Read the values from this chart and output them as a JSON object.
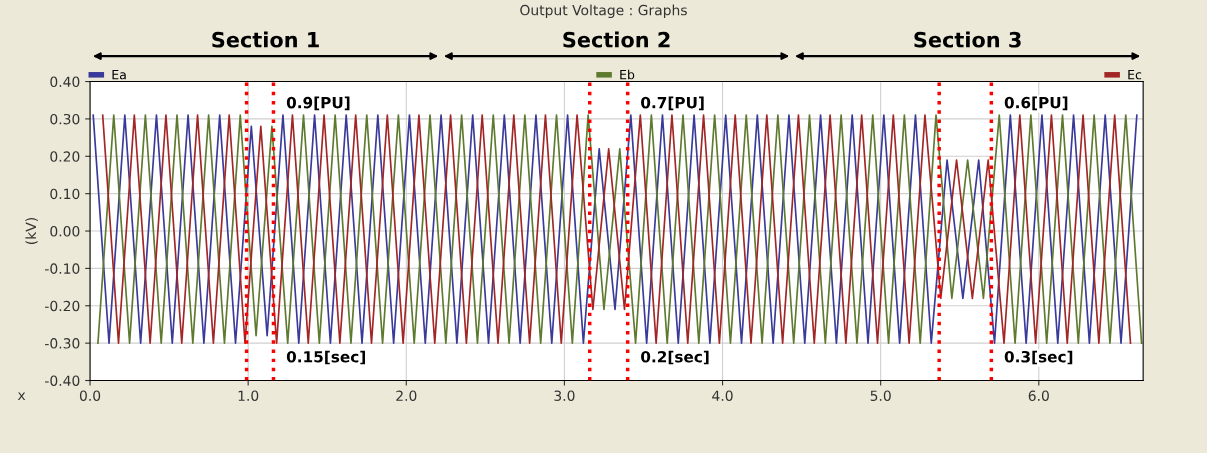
{
  "chart_data": {
    "type": "line",
    "title": "Output Voltage : Graphs",
    "ylabel": "(kV)",
    "xlabel": "x",
    "xlim": [
      0,
      6.66
    ],
    "ylim": [
      -0.4,
      0.4
    ],
    "xticks": [
      {
        "value": 0,
        "label": "0.0"
      },
      {
        "value": 1,
        "label": "1.0"
      },
      {
        "value": 2,
        "label": "2.0"
      },
      {
        "value": 3,
        "label": "3.0"
      },
      {
        "value": 4,
        "label": "4.0"
      },
      {
        "value": 5,
        "label": "5.0"
      },
      {
        "value": 6,
        "label": "6.0"
      }
    ],
    "yticks": [
      {
        "value": -0.4,
        "label": "-0.40"
      },
      {
        "value": -0.3,
        "label": "-0.30"
      },
      {
        "value": -0.2,
        "label": "-0.20"
      },
      {
        "value": -0.1,
        "label": "-0.10"
      },
      {
        "value": 0,
        "label": "0.00"
      },
      {
        "value": 0.1,
        "label": "0.10"
      },
      {
        "value": 0.2,
        "label": "0.20"
      },
      {
        "value": 0.3,
        "label": "0.30"
      },
      {
        "value": 0.4,
        "label": "0.40"
      }
    ],
    "grid": true,
    "legend": "top",
    "marker": "none",
    "line_style": "solid",
    "series": [
      {
        "name": "Ea",
        "color": "#3a3a9a",
        "x": [
          0.02,
          0.12,
          0.22,
          0.32,
          0.42,
          0.52,
          0.62,
          0.72,
          0.82,
          0.92,
          1.02,
          1.12,
          1.22,
          1.32,
          1.42,
          1.52,
          1.62,
          1.72,
          1.82,
          1.92,
          2.02,
          2.12,
          2.22,
          2.32,
          2.42,
          2.52,
          2.62,
          2.72,
          2.82,
          2.92,
          3.02,
          3.12,
          3.22,
          3.32,
          3.42,
          3.52,
          3.62,
          3.72,
          3.82,
          3.92,
          4.02,
          4.12,
          4.22,
          4.32,
          4.42,
          4.52,
          4.62,
          4.72,
          4.82,
          4.92,
          5.02,
          5.12,
          5.22,
          5.32,
          5.42,
          5.52,
          5.62,
          5.72,
          5.82,
          5.92,
          6.02,
          6.12,
          6.22,
          6.32,
          6.42,
          6.52,
          6.62
        ],
        "values": [
          0.31,
          -0.3,
          0.31,
          -0.3,
          0.31,
          -0.3,
          0.31,
          -0.3,
          0.31,
          -0.3,
          0.28,
          -0.28,
          0.31,
          -0.3,
          0.31,
          -0.3,
          0.31,
          -0.3,
          0.31,
          -0.3,
          0.31,
          -0.3,
          0.31,
          -0.3,
          0.31,
          -0.3,
          0.31,
          -0.3,
          0.31,
          -0.3,
          0.31,
          -0.3,
          0.22,
          -0.21,
          0.31,
          -0.3,
          0.31,
          -0.3,
          0.31,
          -0.3,
          0.31,
          -0.3,
          0.31,
          -0.3,
          0.31,
          -0.3,
          0.31,
          -0.3,
          0.31,
          -0.3,
          0.31,
          -0.3,
          0.31,
          -0.3,
          0.19,
          -0.18,
          0.19,
          -0.3,
          0.31,
          -0.3,
          0.31,
          -0.3,
          0.31,
          -0.3,
          0.31,
          -0.3,
          0.31
        ]
      },
      {
        "name": "Eb",
        "color": "#5e7a2e",
        "x": [
          0.05,
          0.15,
          0.25,
          0.35,
          0.45,
          0.55,
          0.65,
          0.75,
          0.85,
          0.95,
          1.05,
          1.15,
          1.25,
          1.35,
          1.45,
          1.55,
          1.65,
          1.75,
          1.85,
          1.95,
          2.05,
          2.15,
          2.25,
          2.35,
          2.45,
          2.55,
          2.65,
          2.75,
          2.85,
          2.95,
          3.05,
          3.15,
          3.25,
          3.35,
          3.45,
          3.55,
          3.65,
          3.75,
          3.85,
          3.95,
          4.05,
          4.15,
          4.25,
          4.35,
          4.45,
          4.55,
          4.65,
          4.75,
          4.85,
          4.95,
          5.05,
          5.15,
          5.25,
          5.35,
          5.45,
          5.55,
          5.65,
          5.75,
          5.85,
          5.95,
          6.05,
          6.15,
          6.25,
          6.35,
          6.45,
          6.55,
          6.65
        ],
        "values": [
          -0.3,
          0.31,
          -0.3,
          0.31,
          -0.3,
          0.31,
          -0.3,
          0.31,
          -0.3,
          0.31,
          -0.28,
          0.28,
          -0.3,
          0.31,
          -0.3,
          0.31,
          -0.3,
          0.31,
          -0.3,
          0.31,
          -0.3,
          0.31,
          -0.3,
          0.31,
          -0.3,
          0.31,
          -0.3,
          0.31,
          -0.3,
          0.31,
          -0.3,
          0.31,
          -0.21,
          0.22,
          -0.3,
          0.31,
          -0.3,
          0.31,
          -0.3,
          0.31,
          -0.3,
          0.31,
          -0.3,
          0.31,
          -0.3,
          0.31,
          -0.3,
          0.31,
          -0.3,
          0.31,
          -0.3,
          0.31,
          -0.3,
          0.31,
          -0.18,
          0.19,
          -0.18,
          0.31,
          -0.3,
          0.31,
          -0.3,
          0.31,
          -0.3,
          0.31,
          -0.3,
          0.31,
          -0.3
        ]
      },
      {
        "name": "Ec",
        "color": "#a32626",
        "x": [
          0.08,
          0.18,
          0.28,
          0.38,
          0.48,
          0.58,
          0.68,
          0.78,
          0.88,
          0.98,
          1.08,
          1.18,
          1.28,
          1.38,
          1.48,
          1.58,
          1.68,
          1.78,
          1.88,
          1.98,
          2.08,
          2.18,
          2.28,
          2.38,
          2.48,
          2.58,
          2.68,
          2.78,
          2.88,
          2.98,
          3.08,
          3.18,
          3.28,
          3.38,
          3.48,
          3.58,
          3.68,
          3.78,
          3.88,
          3.98,
          4.08,
          4.18,
          4.28,
          4.38,
          4.48,
          4.58,
          4.68,
          4.78,
          4.88,
          4.98,
          5.08,
          5.18,
          5.28,
          5.38,
          5.48,
          5.58,
          5.68,
          5.78,
          5.88,
          5.98,
          6.08,
          6.18,
          6.28,
          6.38,
          6.48,
          6.58
        ],
        "values": [
          0.31,
          -0.3,
          0.31,
          -0.3,
          0.31,
          -0.3,
          0.31,
          -0.3,
          0.31,
          -0.3,
          0.28,
          -0.3,
          0.31,
          -0.3,
          0.31,
          -0.3,
          0.31,
          -0.3,
          0.31,
          -0.3,
          0.31,
          -0.3,
          0.31,
          -0.3,
          0.31,
          -0.3,
          0.31,
          -0.3,
          0.31,
          -0.3,
          0.31,
          -0.21,
          0.22,
          -0.21,
          0.31,
          -0.3,
          0.31,
          -0.3,
          0.31,
          -0.3,
          0.31,
          -0.3,
          0.31,
          -0.3,
          0.31,
          -0.3,
          0.31,
          -0.3,
          0.31,
          -0.3,
          0.31,
          -0.3,
          0.31,
          -0.18,
          0.19,
          -0.18,
          0.19,
          -0.3,
          0.31,
          -0.3,
          0.31,
          -0.3,
          0.31,
          -0.3,
          0.31,
          -0.3
        ]
      }
    ],
    "ref_lines": [
      {
        "axis": "x",
        "value": 0.99,
        "color": "#ff0000",
        "line_style": "dotted"
      },
      {
        "axis": "x",
        "value": 1.16,
        "color": "#ff0000",
        "line_style": "dotted"
      },
      {
        "axis": "x",
        "value": 3.16,
        "color": "#ff0000",
        "line_style": "dotted"
      },
      {
        "axis": "x",
        "value": 3.4,
        "color": "#ff0000",
        "line_style": "dotted"
      },
      {
        "axis": "x",
        "value": 5.37,
        "color": "#ff0000",
        "line_style": "dotted"
      },
      {
        "axis": "x",
        "value": 5.7,
        "color": "#ff0000",
        "line_style": "dotted"
      }
    ],
    "annotations": [
      "Section 1",
      "Section 2",
      "Section 3",
      "0.9[PU]",
      "0.15[sec]",
      "0.7[PU]",
      "0.2[sec]",
      "0.6[PU]",
      "0.3[sec]"
    ]
  }
}
